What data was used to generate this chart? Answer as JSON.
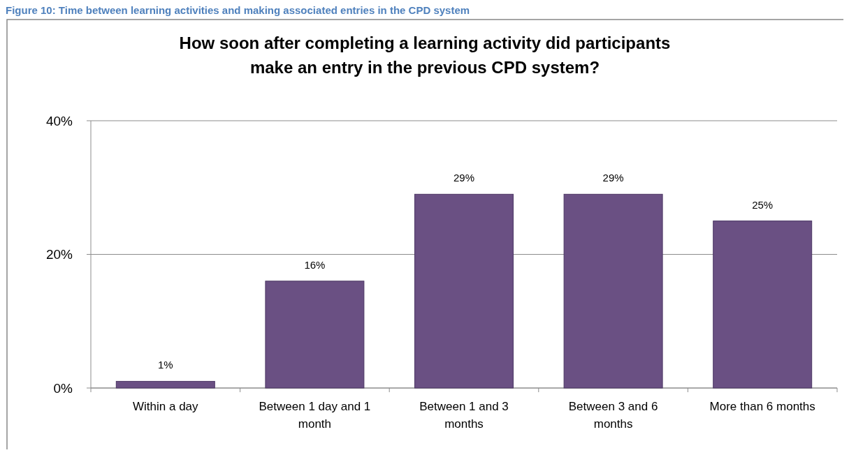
{
  "chart_data": {
    "type": "bar",
    "title": "How soon after completing a learning activity did participants make an entry in the previous CPD  system?",
    "annotations": [
      "Figure 10: Time between learning activities and making associated entries in the CPD system"
    ],
    "categories": [
      "Within a day",
      "Between 1 day and 1 month",
      "Between 1 and 3 months",
      "Between 3 and 6 months",
      "More than 6 months"
    ],
    "values": [
      1,
      16,
      29,
      29,
      25
    ],
    "value_labels": [
      "1%",
      "16%",
      "29%",
      "29%",
      "25%"
    ],
    "color": "#6a5083",
    "ylim": [
      0,
      40
    ],
    "yticks": [
      {
        "value": 0,
        "label": "0%"
      },
      {
        "value": 20,
        "label": "20%"
      },
      {
        "value": 40,
        "label": "40%"
      }
    ],
    "grid": "y"
  }
}
